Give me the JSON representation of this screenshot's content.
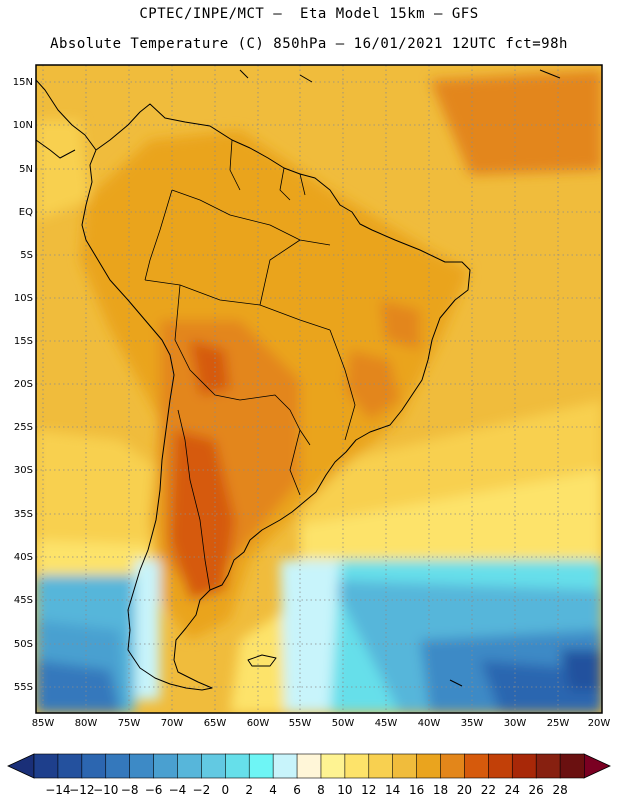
{
  "header": {
    "line1": "CPTEC/INPE/MCT –  Eta Model 15km – GFS",
    "line2": "Absolute Temperature (C) 850hPa – 16/01/2021 12UTC fct=98h"
  },
  "map": {
    "lat_labels": [
      "15N",
      "10N",
      "5N",
      "EQ",
      "5S",
      "10S",
      "15S",
      "20S",
      "25S",
      "30S",
      "35S",
      "40S",
      "45S",
      "50S",
      "55S"
    ],
    "lon_labels": [
      "85W",
      "80W",
      "75W",
      "70W",
      "65W",
      "60W",
      "55W",
      "50W",
      "45W",
      "40W",
      "35W",
      "30W",
      "25W",
      "20W"
    ],
    "gridlines": "dotted"
  },
  "colorbar": {
    "labels": [
      "-14",
      "-12",
      "-10",
      "-8",
      "-6",
      "-4",
      "-2",
      "0",
      "2",
      "4",
      "6",
      "8",
      "10",
      "12",
      "14",
      "16",
      "18",
      "20",
      "22",
      "24",
      "26",
      "28"
    ],
    "colors": [
      "#1e3f8c",
      "#24519e",
      "#2c66b0",
      "#3478bc",
      "#3d8ac6",
      "#4aa0d0",
      "#57b6da",
      "#62c9e2",
      "#66dfea",
      "#6ef5f5",
      "#c8f4fb",
      "#fff6d8",
      "#fef392",
      "#fde36a",
      "#f8d050",
      "#f0bc3c",
      "#eaa41e",
      "#e3861a",
      "#d65a0c",
      "#c24008",
      "#a82808",
      "#872010",
      "#6a1010"
    ],
    "low_end_color": "#1a2f78",
    "high_end_color": "#7a0022"
  }
}
